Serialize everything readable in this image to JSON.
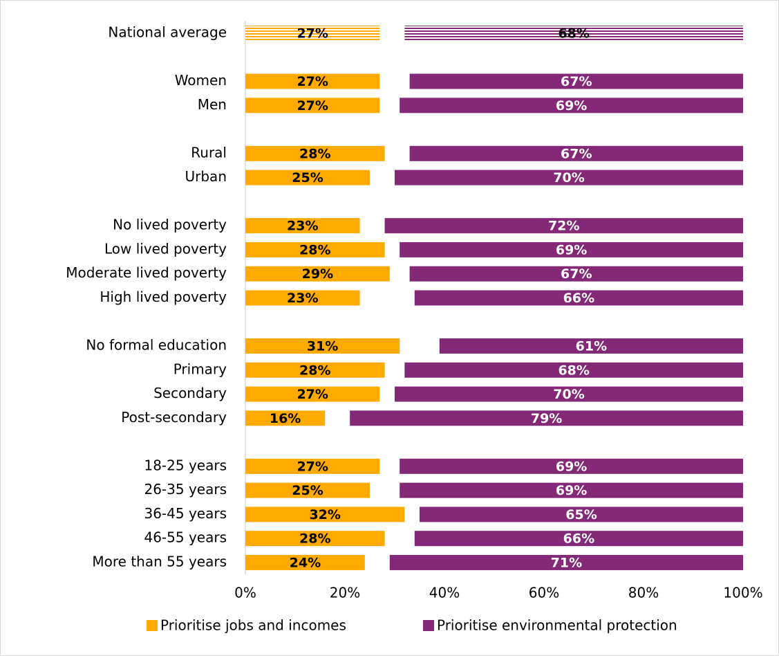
{
  "chart_data": {
    "type": "bar",
    "categories": [
      "National average",
      null,
      "Women",
      "Men",
      null,
      "Rural",
      "Urban",
      null,
      "No lived poverty",
      "Low lived poverty",
      "Moderate lived poverty",
      "High lived poverty",
      null,
      "No formal education",
      "Primary",
      "Secondary",
      "Post-secondary",
      null,
      "18-25 years",
      "26-35 years",
      "36-45 years",
      "46-55 years",
      "More than 55 years"
    ],
    "series": [
      {
        "name": "Prioritise jobs and incomes",
        "color": "#ffaa00",
        "values": [
          27,
          null,
          27,
          27,
          null,
          28,
          25,
          null,
          23,
          28,
          29,
          23,
          null,
          31,
          28,
          27,
          16,
          null,
          27,
          25,
          32,
          28,
          24
        ],
        "value_labels": [
          "27%",
          null,
          "27%",
          "27%",
          null,
          "28%",
          "25%",
          null,
          "23%",
          "28%",
          "29%",
          "23%",
          null,
          "31%",
          "28%",
          "27%",
          "16%",
          null,
          "27%",
          "25%",
          "32%",
          "28%",
          "24%"
        ]
      },
      {
        "name": "Prioritise environmental protection",
        "color": "#842878",
        "values": [
          68,
          null,
          67,
          69,
          null,
          67,
          70,
          null,
          72,
          69,
          67,
          66,
          null,
          61,
          68,
          70,
          79,
          null,
          69,
          69,
          65,
          66,
          71
        ],
        "value_labels": [
          "68%",
          null,
          "67%",
          "69%",
          null,
          "67%",
          "70%",
          null,
          "72%",
          "69%",
          "67%",
          "66%",
          null,
          "61%",
          "68%",
          "70%",
          "79%",
          null,
          "69%",
          "69%",
          "65%",
          "66%",
          "71%"
        ]
      }
    ],
    "xlim": [
      0,
      100
    ],
    "xticks": [
      {
        "value": 0,
        "label": "0%"
      },
      {
        "value": 20,
        "label": "20%"
      },
      {
        "value": 40,
        "label": "40%"
      },
      {
        "value": 60,
        "label": "60%"
      },
      {
        "value": 80,
        "label": "80%"
      },
      {
        "value": 100,
        "label": "100%"
      }
    ],
    "legend": "bottom"
  }
}
